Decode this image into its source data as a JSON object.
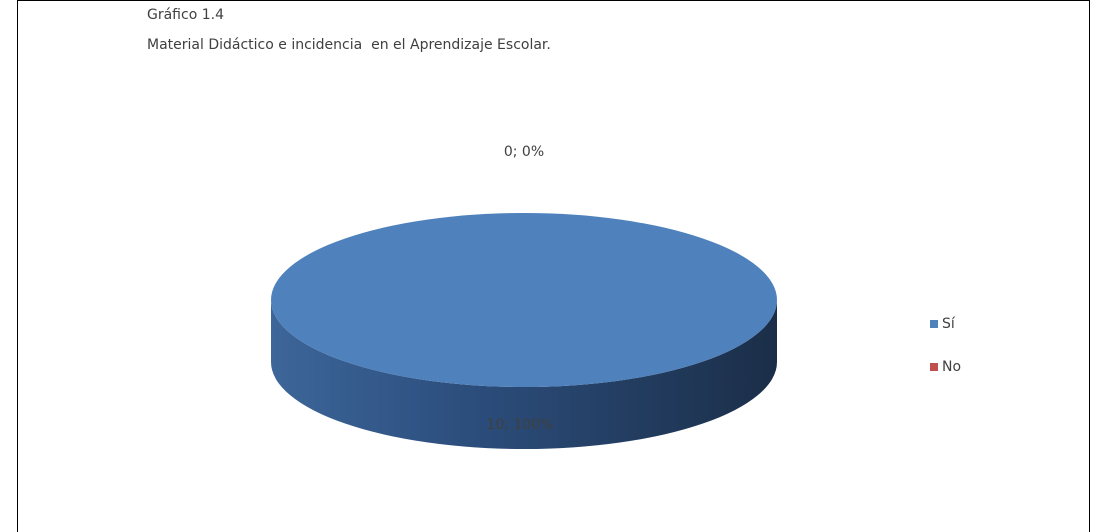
{
  "chart_data": {
    "type": "pie3d",
    "title": "Gráfico 1.4",
    "subtitle": "Material Didáctico e incidencia  en el Aprendizaje Escolar.",
    "categories": [
      "Sí",
      "No"
    ],
    "values": [
      10,
      0
    ],
    "value_labels": [
      "10; 100%",
      "0; 0%"
    ],
    "colors": [
      "#4f81bd",
      "#c0504d"
    ],
    "legend": "right"
  }
}
